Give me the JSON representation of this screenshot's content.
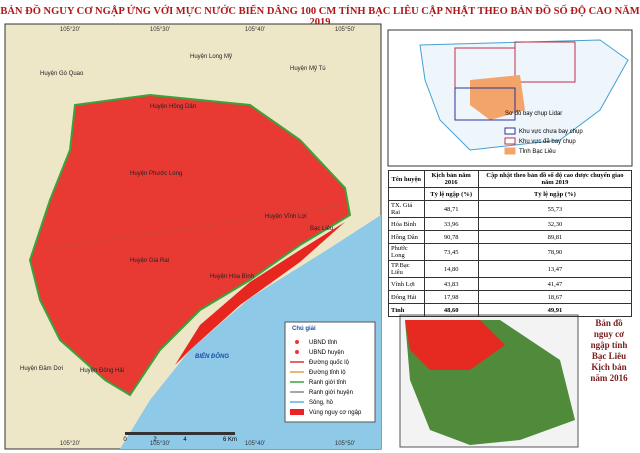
{
  "header": {
    "title": "BẢN ĐỒ NGUY CƠ NGẬP ỨNG VỚI MỰC NƯỚC BIỂN DÂNG 100 CM TỈNH BẠC LIÊU CẬP NHẬT THEO BẢN ĐỒ SỐ ĐỘ CAO NĂM 2019"
  },
  "map": {
    "sea": "BIỂN ĐÔNG",
    "places": [
      "Huyện Long Mỹ",
      "Huyện Gò Quao",
      "Huyện Mỹ Tú",
      "Huyện Hồng Dân",
      "Huyện Phước Long",
      "Huyện Giá Rai",
      "Huyện Hòa Bình",
      "Bạc Liêu",
      "Huyện Vĩnh Lợi",
      "Huyện Đầm Dơi",
      "Huyện Đông Hải"
    ],
    "coordinates": [
      "105°20'",
      "105°30'",
      "105°40'",
      "105°50'"
    ],
    "scale": [
      "0",
      "2",
      "4",
      "6 Km"
    ]
  },
  "legend": {
    "title": "Chú giải",
    "items": [
      "UBND tỉnh",
      "UBND huyện",
      "Đường quốc lộ",
      "Đường tỉnh lộ",
      "Ranh giới tỉnh",
      "Ranh giới huyện",
      "Sông, hồ",
      "Vùng nguy cơ ngập"
    ]
  },
  "inset": {
    "title": "Sơ đồ bay chụp Lidar",
    "items": [
      "Khu vực chưa bay chụp",
      "Khu vực đã bay chụp",
      "Tỉnh Bạc Liêu"
    ]
  },
  "table": {
    "header": [
      "Tên huyện",
      "Kịch bản năm 2016",
      "Cập nhật theo bản đồ số độ cao được chuyển giao năm 2019"
    ],
    "subheader": [
      "Tỷ lệ ngập (%)",
      "Tỷ lệ ngập (%)"
    ],
    "rows": [
      [
        "TX. Giá Rai",
        "48,71",
        "55,73"
      ],
      [
        "Hòa Bình",
        "33,96",
        "32,30"
      ],
      [
        "Hồng Dân",
        "90,78",
        "89,81"
      ],
      [
        "Phước Long",
        "73,45",
        "78,90"
      ],
      [
        "TP.Bạc Liêu",
        "14,80",
        "13,47"
      ],
      [
        "Vĩnh Lợi",
        "43,83",
        "41,47"
      ],
      [
        "Đông Hải",
        "17,98",
        "18,67"
      ],
      [
        "Tỉnh",
        "48,60",
        "49,91"
      ]
    ]
  },
  "caption": "Bản đồ nguy cơ ngập tỉnh Bạc Liêu Kịch bản năm 2016"
}
